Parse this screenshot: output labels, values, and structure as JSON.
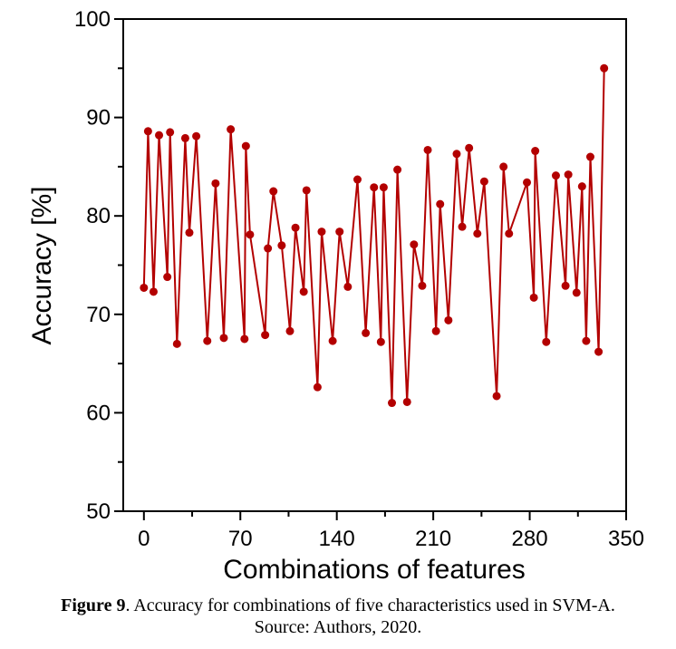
{
  "chart_data": {
    "type": "line",
    "xlabel": "Combinations of features",
    "ylabel": "Accuracy [%]",
    "xlim": [
      -15,
      350
    ],
    "ylim": [
      50,
      100
    ],
    "xticks": [
      0,
      70,
      140,
      210,
      280,
      350
    ],
    "yticks": [
      50,
      60,
      70,
      80,
      90,
      100
    ],
    "grid": false,
    "color": "#b30000",
    "series": [
      {
        "x": [
          0,
          3,
          7,
          11,
          17,
          19,
          24,
          30,
          33,
          38,
          46,
          52,
          58,
          63,
          73,
          74,
          77,
          88,
          90,
          94,
          100,
          106,
          110,
          116,
          118,
          126,
          129,
          137,
          142,
          148,
          155,
          161,
          167,
          172,
          174,
          180,
          184,
          191,
          196,
          202,
          206,
          212,
          215,
          221,
          227,
          231,
          236,
          242,
          247,
          256,
          261,
          265,
          278,
          283,
          284,
          292,
          299,
          306,
          308,
          314,
          318,
          321,
          324,
          330,
          334
        ],
        "y": [
          72.7,
          88.6,
          72.3,
          88.2,
          73.8,
          88.5,
          67.0,
          87.9,
          78.3,
          88.1,
          67.3,
          83.3,
          67.6,
          88.8,
          67.5,
          87.1,
          78.1,
          67.9,
          76.7,
          82.5,
          77.0,
          68.3,
          78.8,
          72.3,
          82.6,
          62.6,
          78.4,
          67.3,
          78.4,
          72.8,
          83.7,
          68.1,
          82.9,
          67.2,
          82.9,
          61.0,
          84.7,
          61.1,
          77.1,
          72.9,
          86.7,
          68.3,
          81.2,
          69.4,
          86.3,
          78.9,
          86.9,
          78.2,
          83.5,
          61.7,
          85.0,
          78.2,
          83.4,
          71.7,
          86.6,
          67.2,
          84.1,
          72.9,
          84.2,
          72.2,
          83.0,
          67.3,
          86.0,
          66.2,
          95.0
        ]
      }
    ]
  },
  "caption": {
    "figure_label": "Figure 9",
    "figure_text": ". Accuracy for combinations of five characteristics used in SVM-A.",
    "source": "Source: Authors, 2020."
  }
}
